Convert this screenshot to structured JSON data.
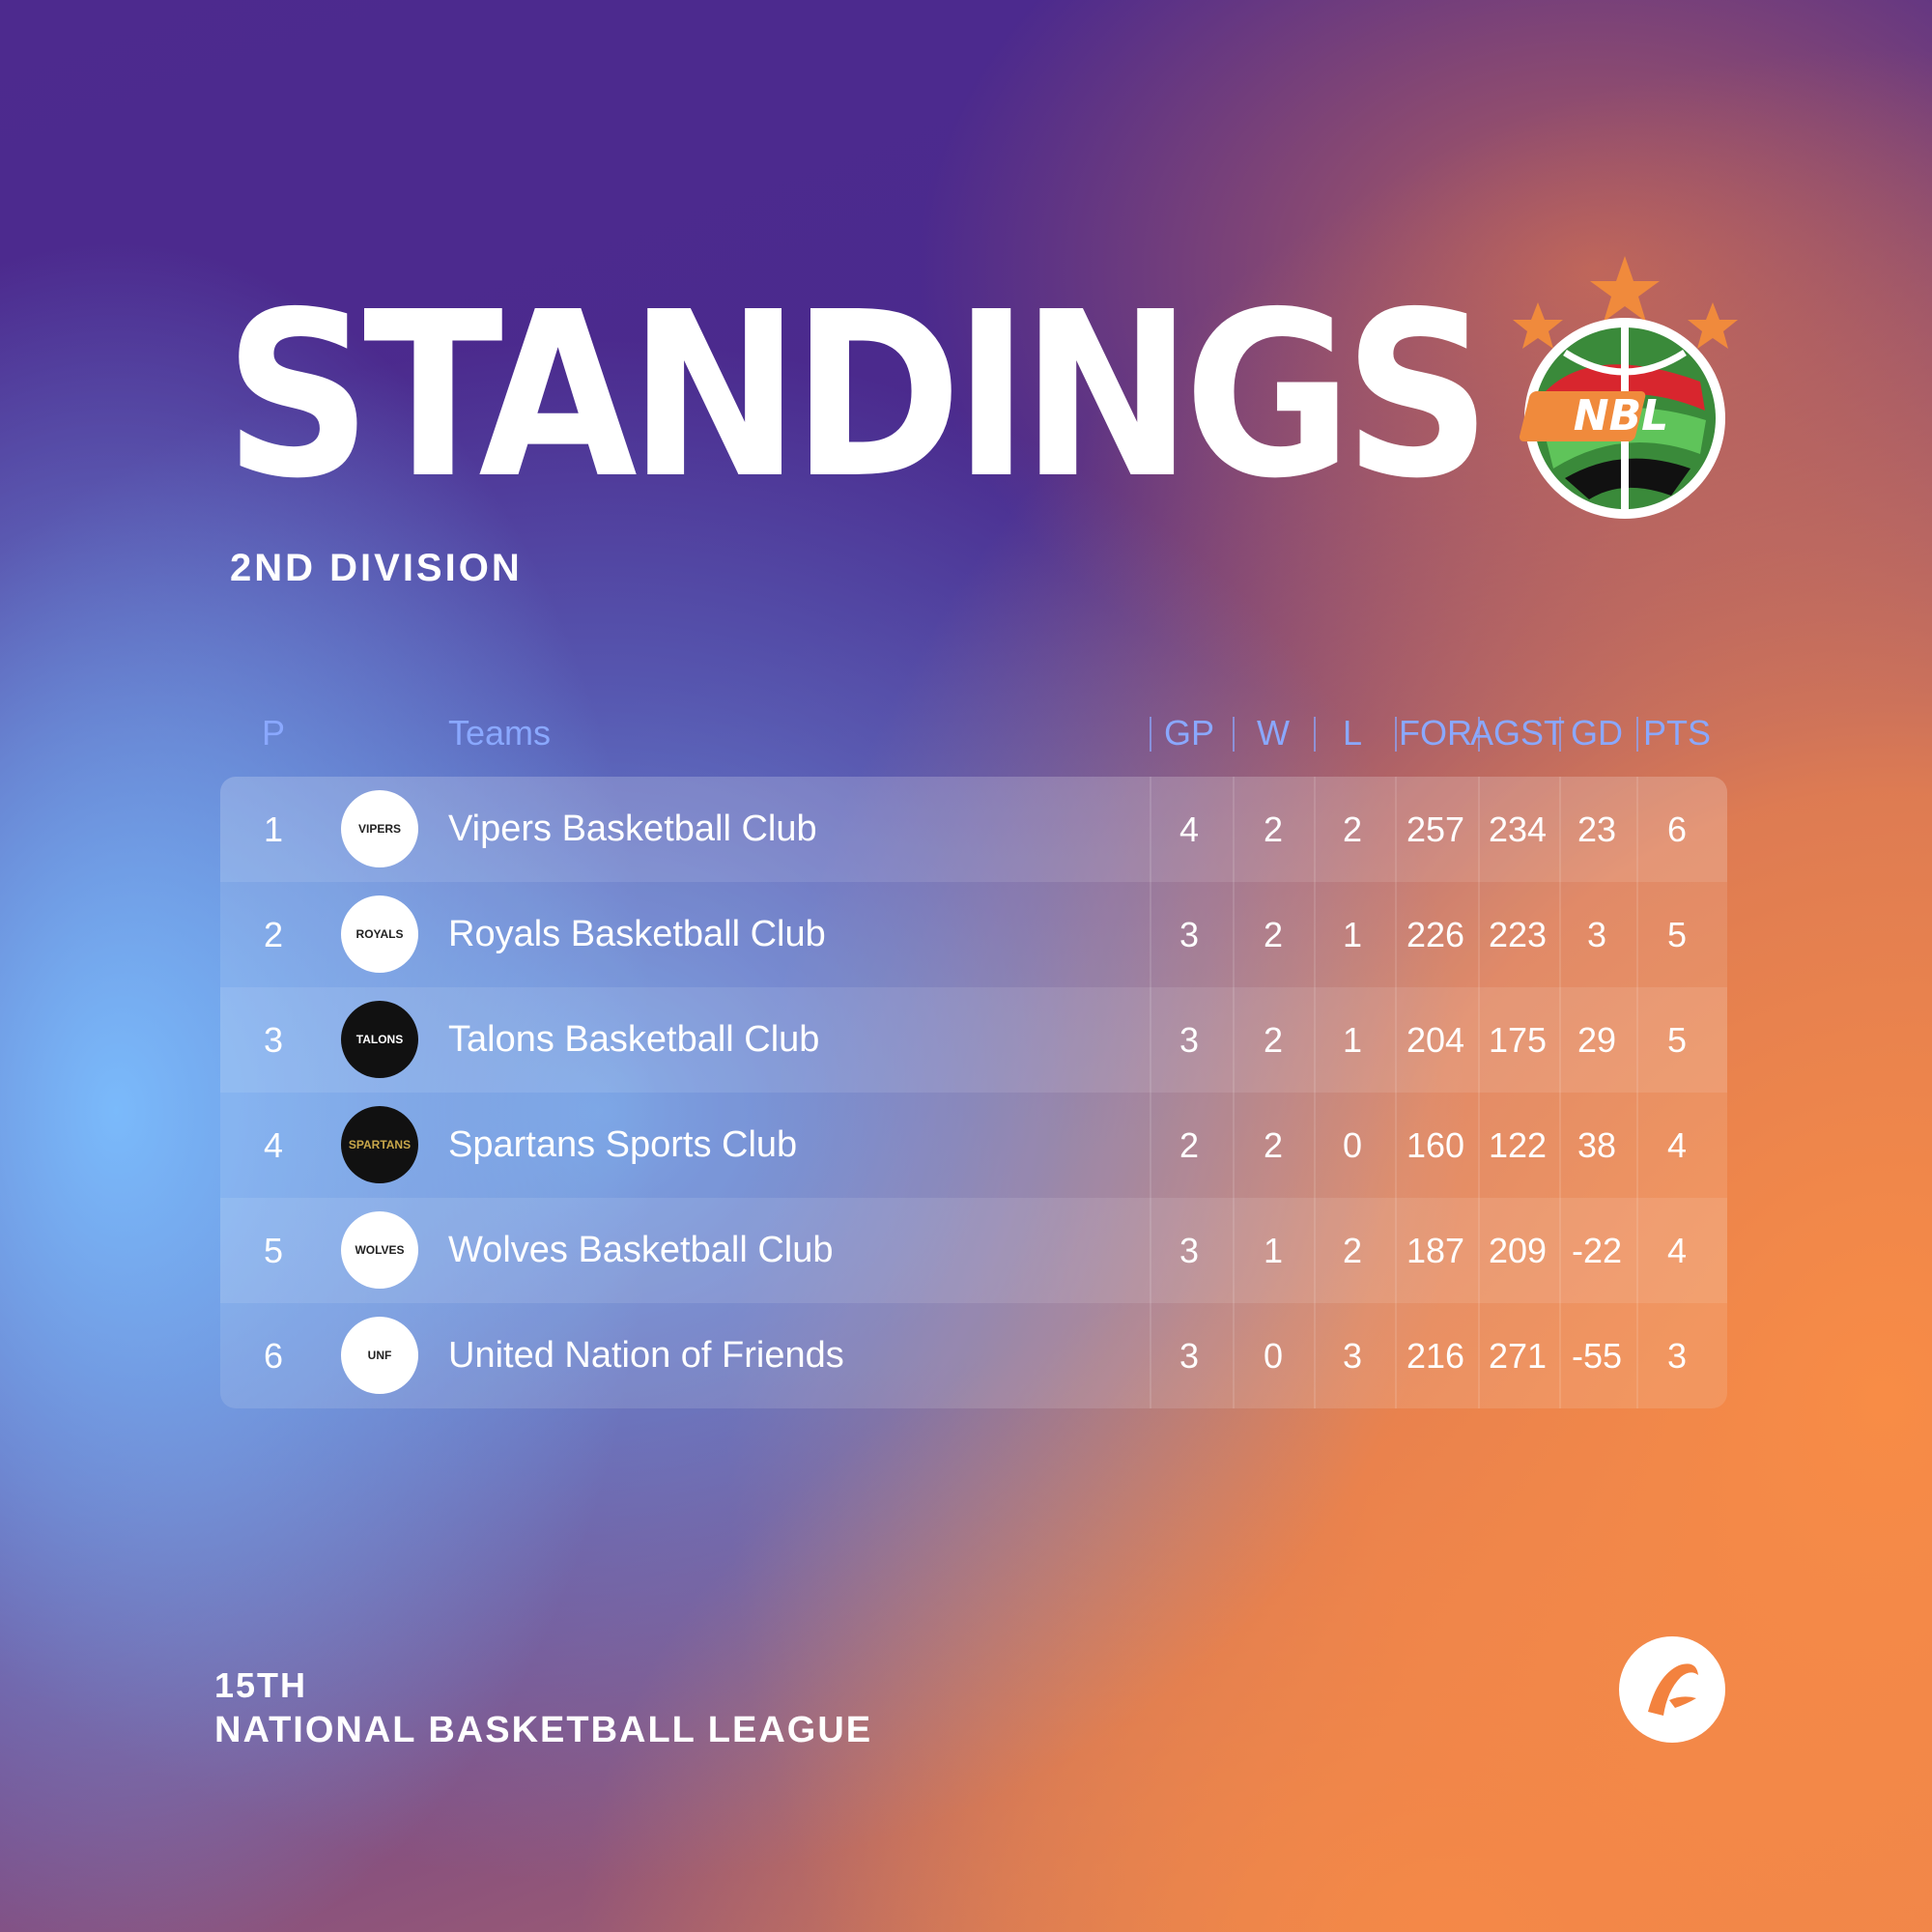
{
  "header": {
    "title": "STANDINGS",
    "subtitle": "2ND DIVISION",
    "logo_text": "NBL"
  },
  "table": {
    "columns": {
      "p": "P",
      "teams": "Teams",
      "gp": "GP",
      "w": "W",
      "l": "L",
      "for": "FOR",
      "agst": "AGST",
      "gd": "GD",
      "pts": "PTS"
    },
    "rows": [
      {
        "p": "1",
        "logo_text": "VIPERS",
        "team": "Vipers Basketball Club",
        "gp": "4",
        "w": "2",
        "l": "2",
        "for": "257",
        "agst": "234",
        "gd": "23",
        "pts": "6"
      },
      {
        "p": "2",
        "logo_text": "ROYALS",
        "team": "Royals Basketball Club",
        "gp": "3",
        "w": "2",
        "l": "1",
        "for": "226",
        "agst": "223",
        "gd": "3",
        "pts": "5"
      },
      {
        "p": "3",
        "logo_text": "TALONS",
        "team": "Talons Basketball Club",
        "gp": "3",
        "w": "2",
        "l": "1",
        "for": "204",
        "agst": "175",
        "gd": "29",
        "pts": "5"
      },
      {
        "p": "4",
        "logo_text": "SPARTANS",
        "team": "Spartans Sports Club",
        "gp": "2",
        "w": "2",
        "l": "0",
        "for": "160",
        "agst": "122",
        "gd": "38",
        "pts": "4"
      },
      {
        "p": "5",
        "logo_text": "WOLVES",
        "team": "Wolves Basketball Club",
        "gp": "3",
        "w": "1",
        "l": "2",
        "for": "187",
        "agst": "209",
        "gd": "-22",
        "pts": "4"
      },
      {
        "p": "6",
        "logo_text": "UNF",
        "team": "United Nation of Friends",
        "gp": "3",
        "w": "0",
        "l": "3",
        "for": "216",
        "agst": "271",
        "gd": "-55",
        "pts": "3"
      }
    ]
  },
  "footer": {
    "line1": "15TH",
    "line2": "NATIONAL BASKETBALL LEAGUE"
  },
  "colors": {
    "header_text": "#8aa8ff",
    "logo_orange": "#f08a3c",
    "logo_green": "#5fc45a",
    "logo_red": "#d8262e"
  },
  "icons": {
    "brand": "nbl-logo-icon",
    "corner": "arrow-badge-icon"
  }
}
